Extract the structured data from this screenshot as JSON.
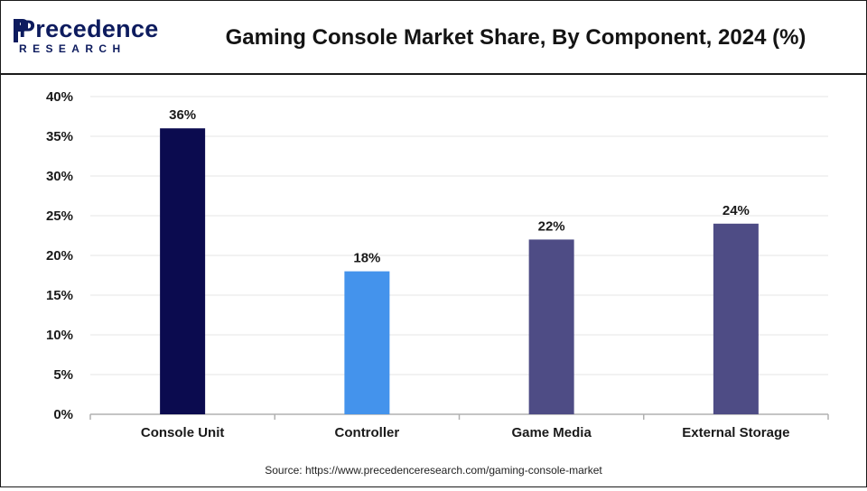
{
  "logo": {
    "top": "Precedence",
    "bottom": "RESEARCH",
    "color": "#0d1b5e"
  },
  "source": "Source: https://www.precedenceresearch.com/gaming-console-market",
  "chart_data": {
    "type": "bar",
    "title": "Gaming Console Market Share, By Component, 2024 (%)",
    "categories": [
      "Console Unit",
      "Controller",
      "Game Media",
      "External Storage"
    ],
    "values": [
      36,
      18,
      22,
      24
    ],
    "data_labels": [
      "36%",
      "18%",
      "22%",
      "24%"
    ],
    "colors": [
      "#0b0b4f",
      "#4493ec",
      "#4e4c85",
      "#4e4c85"
    ],
    "ylim": [
      0,
      40
    ],
    "yticks": [
      0,
      5,
      10,
      15,
      20,
      25,
      30,
      35,
      40
    ],
    "ytick_labels": [
      "0%",
      "5%",
      "10%",
      "15%",
      "20%",
      "25%",
      "30%",
      "35%",
      "40%"
    ],
    "xlabel": "",
    "ylabel": "",
    "grid": true
  }
}
